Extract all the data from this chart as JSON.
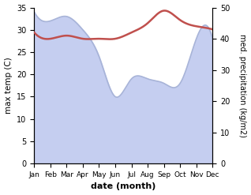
{
  "months": [
    "Jan",
    "Feb",
    "Mar",
    "Apr",
    "May",
    "Jun",
    "Jul",
    "Aug",
    "Sep",
    "Oct",
    "Nov",
    "Dec"
  ],
  "max_temp": [
    34,
    32,
    33,
    30,
    24,
    15,
    19,
    19,
    18,
    18,
    28,
    28
  ],
  "precipitation": [
    42,
    40,
    41,
    40,
    40,
    40,
    42,
    45,
    49,
    46,
    44,
    43
  ],
  "temp_color": "#a8b4d8",
  "temp_fill_color": "#c5cef0",
  "precip_color": "#c0504d",
  "xlabel": "date (month)",
  "ylabel_left": "max temp (C)",
  "ylabel_right": "med. precipitation (kg/m2)",
  "ylim_left": [
    0,
    35
  ],
  "ylim_right": [
    0,
    50
  ],
  "yticks_left": [
    0,
    5,
    10,
    15,
    20,
    25,
    30,
    35
  ],
  "yticks_right": [
    0,
    10,
    20,
    30,
    40,
    50
  ],
  "background_color": "#ffffff",
  "fig_width": 3.18,
  "fig_height": 2.47,
  "dpi": 100
}
